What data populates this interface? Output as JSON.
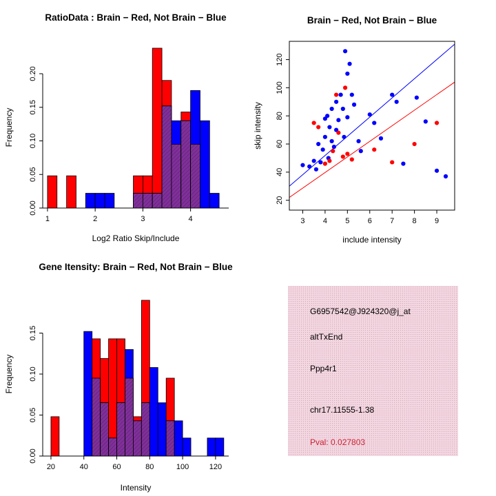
{
  "figure": {
    "background": "#ffffff"
  },
  "colors": {
    "red": "#ff0000",
    "blue": "#0000ff",
    "overlap": "#803099",
    "overlap_hatch": "#5a1f73",
    "axis": "#000000",
    "info_bg": "#f2d7e1",
    "pval_red": "#cc2233"
  },
  "info_box": {
    "lines": [
      {
        "text": "G6957542@J924320@j_at",
        "color": "#000000"
      },
      {
        "text": "altTxEnd",
        "color": "#000000"
      },
      {
        "text": "Ppp4r1",
        "color": "#000000"
      },
      {
        "text": "chr17.11555-1.38",
        "color": "#000000"
      },
      {
        "text": "Pval: 0.027803",
        "color": "#cc2233"
      }
    ]
  },
  "chart_data": [
    {
      "id": "chart-hist-ratio",
      "type": "bar",
      "subtype": "overlaid-histogram",
      "title": "RatioData : Brain − Red, Not Brain − Blue",
      "xlabel": "Log2 Ratio Skip/Include",
      "ylabel": "Frequency",
      "xlim": [
        0.9,
        4.8
      ],
      "ylim": [
        0,
        0.24
      ],
      "xticks": [
        1,
        2,
        3,
        4
      ],
      "xtick_labels": [
        "1",
        "2",
        "3",
        "4"
      ],
      "yticks": [
        0,
        0.05,
        0.1,
        0.15,
        0.2
      ],
      "ytick_labels": [
        "0.00",
        "0.05",
        "0.10",
        "0.15",
        "0.20"
      ],
      "bin_width": 0.2,
      "series": [
        {
          "name": "Brain",
          "color": "red"
        },
        {
          "name": "Not Brain",
          "color": "blue"
        }
      ],
      "bins": [
        {
          "x": 1.0,
          "red": 0.048,
          "blue": 0
        },
        {
          "x": 1.4,
          "red": 0.048,
          "blue": 0
        },
        {
          "x": 1.8,
          "red": 0,
          "blue": 0.022
        },
        {
          "x": 2.0,
          "red": 0,
          "blue": 0.022
        },
        {
          "x": 2.2,
          "red": 0,
          "blue": 0.022
        },
        {
          "x": 2.8,
          "red": 0.048,
          "blue": 0.022
        },
        {
          "x": 3.0,
          "red": 0.048,
          "blue": 0.022
        },
        {
          "x": 3.2,
          "red": 0.238,
          "blue": 0.022
        },
        {
          "x": 3.4,
          "red": 0.19,
          "blue": 0.152
        },
        {
          "x": 3.6,
          "red": 0.095,
          "blue": 0.13
        },
        {
          "x": 3.8,
          "red": 0.143,
          "blue": 0.13
        },
        {
          "x": 4.0,
          "red": 0.095,
          "blue": 0.175
        },
        {
          "x": 4.2,
          "red": 0,
          "blue": 0.13
        },
        {
          "x": 4.4,
          "red": 0,
          "blue": 0.022
        }
      ]
    },
    {
      "id": "chart-scatter",
      "type": "scatter",
      "title": "Brain − Red, Not Brain − Blue",
      "xlabel": "include intensity",
      "ylabel": "skip intensity",
      "xlim": [
        2.4,
        9.8
      ],
      "ylim": [
        13,
        133
      ],
      "xticks": [
        3,
        4,
        5,
        6,
        7,
        8,
        9
      ],
      "xtick_labels": [
        "3",
        "4",
        "5",
        "6",
        "7",
        "8",
        "9"
      ],
      "yticks": [
        20,
        40,
        60,
        80,
        100,
        120
      ],
      "ytick_labels": [
        "20",
        "40",
        "60",
        "80",
        "100",
        "120"
      ],
      "points": {
        "blue": [
          [
            3.0,
            45
          ],
          [
            3.3,
            44
          ],
          [
            3.5,
            48
          ],
          [
            3.6,
            42
          ],
          [
            3.7,
            60
          ],
          [
            3.8,
            47
          ],
          [
            3.9,
            56
          ],
          [
            4.0,
            78
          ],
          [
            4.0,
            65
          ],
          [
            4.1,
            80
          ],
          [
            4.15,
            50
          ],
          [
            4.2,
            72
          ],
          [
            4.3,
            62
          ],
          [
            4.3,
            85
          ],
          [
            4.4,
            58
          ],
          [
            4.5,
            90
          ],
          [
            4.5,
            70
          ],
          [
            4.6,
            77
          ],
          [
            4.7,
            95
          ],
          [
            4.8,
            85
          ],
          [
            4.85,
            65
          ],
          [
            4.9,
            126
          ],
          [
            5.0,
            110
          ],
          [
            5.0,
            79
          ],
          [
            5.1,
            117
          ],
          [
            5.2,
            95
          ],
          [
            5.3,
            88
          ],
          [
            5.5,
            62
          ],
          [
            5.6,
            55
          ],
          [
            6.0,
            81
          ],
          [
            6.2,
            75
          ],
          [
            6.5,
            64
          ],
          [
            7.0,
            95
          ],
          [
            7.2,
            90
          ],
          [
            7.5,
            46
          ],
          [
            8.1,
            93
          ],
          [
            8.5,
            76
          ],
          [
            9.0,
            41
          ],
          [
            9.4,
            37
          ]
        ],
        "red": [
          [
            3.5,
            75
          ],
          [
            3.7,
            72
          ],
          [
            4.0,
            46
          ],
          [
            4.2,
            48
          ],
          [
            4.35,
            55
          ],
          [
            4.5,
            95
          ],
          [
            4.6,
            68
          ],
          [
            4.8,
            51
          ],
          [
            4.9,
            100
          ],
          [
            5.0,
            53
          ],
          [
            5.2,
            49
          ],
          [
            6.2,
            56
          ],
          [
            7.0,
            47
          ],
          [
            8.0,
            60
          ],
          [
            9.0,
            75
          ]
        ]
      },
      "lines": [
        {
          "color": "blue",
          "x1": 2.4,
          "y1": 30,
          "x2": 9.8,
          "y2": 131
        },
        {
          "color": "red",
          "x1": 2.4,
          "y1": 22,
          "x2": 9.8,
          "y2": 104
        }
      ]
    },
    {
      "id": "chart-hist-gene",
      "type": "bar",
      "subtype": "overlaid-histogram",
      "title": "Gene Itensity: Brain − Red, Not Brain − Blue",
      "xlabel": "Intensity",
      "ylabel": "Frequency",
      "xlim": [
        15,
        128
      ],
      "ylim": [
        0,
        0.2
      ],
      "xticks": [
        20,
        40,
        60,
        80,
        100,
        120
      ],
      "xtick_labels": [
        "20",
        "40",
        "60",
        "80",
        "100",
        "120"
      ],
      "yticks": [
        0,
        0.05,
        0.1,
        0.15
      ],
      "ytick_labels": [
        "0.00",
        "0.05",
        "0.10",
        "0.15"
      ],
      "bin_width": 5,
      "series": [
        {
          "name": "Brain",
          "color": "red"
        },
        {
          "name": "Not Brain",
          "color": "blue"
        }
      ],
      "bins": [
        {
          "x": 20,
          "red": 0.048,
          "blue": 0
        },
        {
          "x": 40,
          "red": 0,
          "blue": 0.152
        },
        {
          "x": 45,
          "red": 0.143,
          "blue": 0.095
        },
        {
          "x": 50,
          "red": 0.119,
          "blue": 0.065
        },
        {
          "x": 55,
          "red": 0.143,
          "blue": 0.022
        },
        {
          "x": 60,
          "red": 0.143,
          "blue": 0.065
        },
        {
          "x": 65,
          "red": 0.095,
          "blue": 0.13
        },
        {
          "x": 70,
          "red": 0.048,
          "blue": 0.043
        },
        {
          "x": 75,
          "red": 0.19,
          "blue": 0.065
        },
        {
          "x": 80,
          "red": 0,
          "blue": 0.108
        },
        {
          "x": 85,
          "red": 0,
          "blue": 0.065
        },
        {
          "x": 90,
          "red": 0.095,
          "blue": 0.043
        },
        {
          "x": 95,
          "red": 0,
          "blue": 0.043
        },
        {
          "x": 100,
          "red": 0,
          "blue": 0.022
        },
        {
          "x": 115,
          "red": 0,
          "blue": 0.022
        },
        {
          "x": 120,
          "red": 0,
          "blue": 0.022
        }
      ]
    }
  ]
}
